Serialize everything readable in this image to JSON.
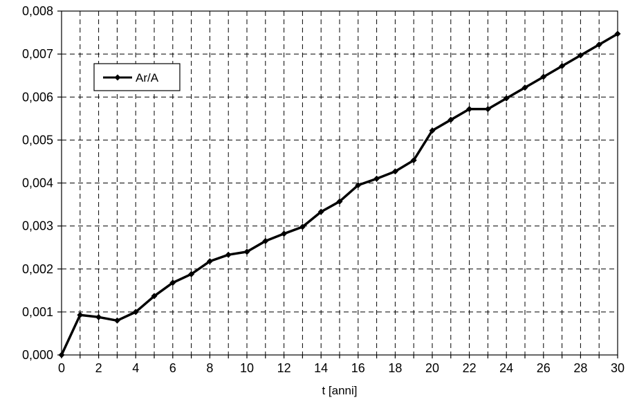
{
  "chart_data": {
    "type": "line",
    "title": "",
    "xlabel": "t [anni]",
    "ylabel": "",
    "xlim": [
      0,
      30
    ],
    "ylim": [
      0,
      0.008
    ],
    "x_ticks": [
      0,
      2,
      4,
      6,
      8,
      10,
      12,
      14,
      16,
      18,
      20,
      22,
      24,
      26,
      28,
      30
    ],
    "x_tick_labels": [
      "0",
      "2",
      "4",
      "6",
      "8",
      "10",
      "12",
      "14",
      "16",
      "18",
      "20",
      "22",
      "24",
      "26",
      "28",
      "30"
    ],
    "y_ticks": [
      0,
      0.001,
      0.002,
      0.003,
      0.004,
      0.005,
      0.006,
      0.007,
      0.008
    ],
    "y_tick_labels": [
      "0,000",
      "0,001",
      "0,002",
      "0,003",
      "0,004",
      "0,005",
      "0,006",
      "0,007",
      "0,008"
    ],
    "grid": "dashed, both axes, every 1 unit on x and every 0.001 on y",
    "legend_position": "top-left",
    "series": [
      {
        "name": "Ar/A",
        "color": "#000000",
        "marker": "diamond",
        "x": [
          0,
          1,
          2,
          3,
          4,
          5,
          6,
          7,
          8,
          9,
          10,
          11,
          12,
          13,
          14,
          15,
          16,
          17,
          18,
          19,
          20,
          21,
          22,
          23,
          24,
          25,
          26,
          27,
          28,
          29,
          30
        ],
        "y": [
          0.0,
          0.00093,
          0.00088,
          0.0008,
          0.001,
          0.00137,
          0.00168,
          0.00188,
          0.00218,
          0.00233,
          0.0024,
          0.00265,
          0.00282,
          0.00298,
          0.00333,
          0.00357,
          0.00395,
          0.0041,
          0.00427,
          0.00453,
          0.00522,
          0.00547,
          0.00572,
          0.00572,
          0.00597,
          0.00622,
          0.00647,
          0.00672,
          0.00697,
          0.00722,
          0.00747
        ]
      }
    ]
  }
}
